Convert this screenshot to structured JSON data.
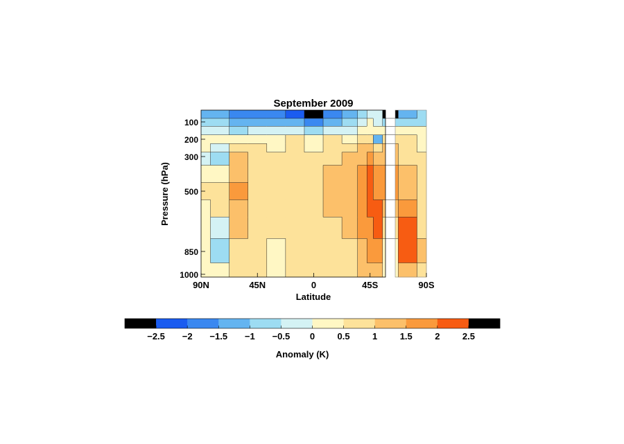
{
  "chart_data": {
    "type": "heatmap",
    "title": "September 2009",
    "xlabel": "Latitude",
    "ylabel": "Pressure (hPa)",
    "x_ticks": [
      "90N",
      "45N",
      "0",
      "45S",
      "90S"
    ],
    "x_tick_values": [
      90,
      45,
      0,
      -45,
      -90
    ],
    "xlim": [
      90,
      -90
    ],
    "y_ticks": [
      "100",
      "200",
      "300",
      "500",
      "850",
      "1000"
    ],
    "y_tick_values": [
      100,
      200,
      300,
      500,
      850,
      1000
    ],
    "ylim": [
      50,
      1000
    ],
    "y_scale": "nonlinear (pressure)",
    "colorbar": {
      "label": "Anomaly (K)",
      "ticks": [
        "-2.5",
        "-2",
        "-1.5",
        "-1",
        "-0.5",
        "0",
        "0.5",
        "1",
        "1.5",
        "2",
        "2.5"
      ],
      "tick_values": [
        -2.5,
        -2,
        -1.5,
        -1,
        -0.5,
        0,
        0.5,
        1,
        1.5,
        2,
        2.5
      ],
      "colors": [
        "#000000",
        "#1a5cf0",
        "#3a88f0",
        "#64b4f0",
        "#9ddcf2",
        "#d4f2f4",
        "#fff7c4",
        "#fde29a",
        "#fcc06a",
        "#fa9a3c",
        "#f75c12",
        "#000000"
      ]
    },
    "latitudes": [
      90,
      75,
      60,
      45,
      30,
      15,
      0,
      -15,
      -30,
      -40,
      -45,
      -50,
      -60,
      -75,
      -90
    ],
    "pressures": [
      70,
      100,
      150,
      200,
      250,
      300,
      400,
      500,
      600,
      700,
      850,
      1000
    ],
    "values": [
      [
        -1.2,
        -1.4,
        -1.6,
        -1.8,
        -2.0,
        -2.3,
        -2.6,
        -2.0,
        -1.4,
        -0.8,
        -0.5,
        -0.4,
        -2.6,
        -1.5,
        -1.0
      ],
      [
        -0.6,
        -0.8,
        -1.1,
        -1.3,
        -1.5,
        -1.2,
        -1.6,
        -1.1,
        -0.7,
        -0.3,
        0.0,
        -0.3,
        -1.0,
        -0.8,
        -0.6
      ],
      [
        -0.3,
        -0.5,
        -0.6,
        -0.5,
        -0.4,
        -0.1,
        -0.6,
        -0.3,
        -0.2,
        0.2,
        0.4,
        0.0,
        0.4,
        0.2,
        0.0
      ],
      [
        0.1,
        0.0,
        0.3,
        0.2,
        0.3,
        0.6,
        0.2,
        0.5,
        0.4,
        0.6,
        0.8,
        -1.4,
        0.9,
        0.6,
        0.3
      ],
      [
        0.1,
        -0.4,
        0.6,
        0.5,
        0.4,
        0.8,
        0.4,
        0.8,
        0.8,
        1.0,
        1.4,
        0.6,
        1.1,
        0.8,
        0.4
      ],
      [
        -0.2,
        -0.8,
        1.0,
        0.6,
        0.5,
        0.9,
        0.5,
        0.9,
        1.0,
        1.3,
        1.7,
        1.2,
        1.4,
        0.9,
        0.5
      ],
      [
        0.3,
        0.2,
        1.3,
        0.8,
        0.6,
        0.9,
        0.5,
        1.0,
        1.2,
        1.6,
        2.1,
        1.8,
        1.8,
        1.0,
        0.6
      ],
      [
        0.5,
        0.6,
        1.5,
        0.9,
        0.6,
        0.8,
        0.5,
        1.0,
        1.2,
        1.7,
        2.3,
        1.9,
        1.5,
        1.2,
        0.7
      ],
      [
        0.4,
        0.5,
        1.2,
        0.7,
        0.5,
        0.8,
        0.5,
        1.0,
        1.1,
        1.8,
        2.2,
        2.0,
        1.2,
        1.6,
        0.8
      ],
      [
        0.3,
        -0.3,
        1.0,
        0.6,
        0.5,
        0.8,
        0.6,
        0.9,
        1.0,
        1.5,
        1.9,
        2.2,
        0.8,
        2.1,
        0.9
      ],
      [
        0.2,
        -0.6,
        0.8,
        0.5,
        0.4,
        0.7,
        0.5,
        0.8,
        0.9,
        1.2,
        1.6,
        1.8,
        0.4,
        2.4,
        1.0
      ],
      [
        0.2,
        0.2,
        0.6,
        0.5,
        0.3,
        0.6,
        0.5,
        0.7,
        0.6,
        1.0,
        1.2,
        1.0,
        0.2,
        1.4,
        0.7
      ]
    ],
    "grid": false,
    "legend": "colorbar below"
  }
}
